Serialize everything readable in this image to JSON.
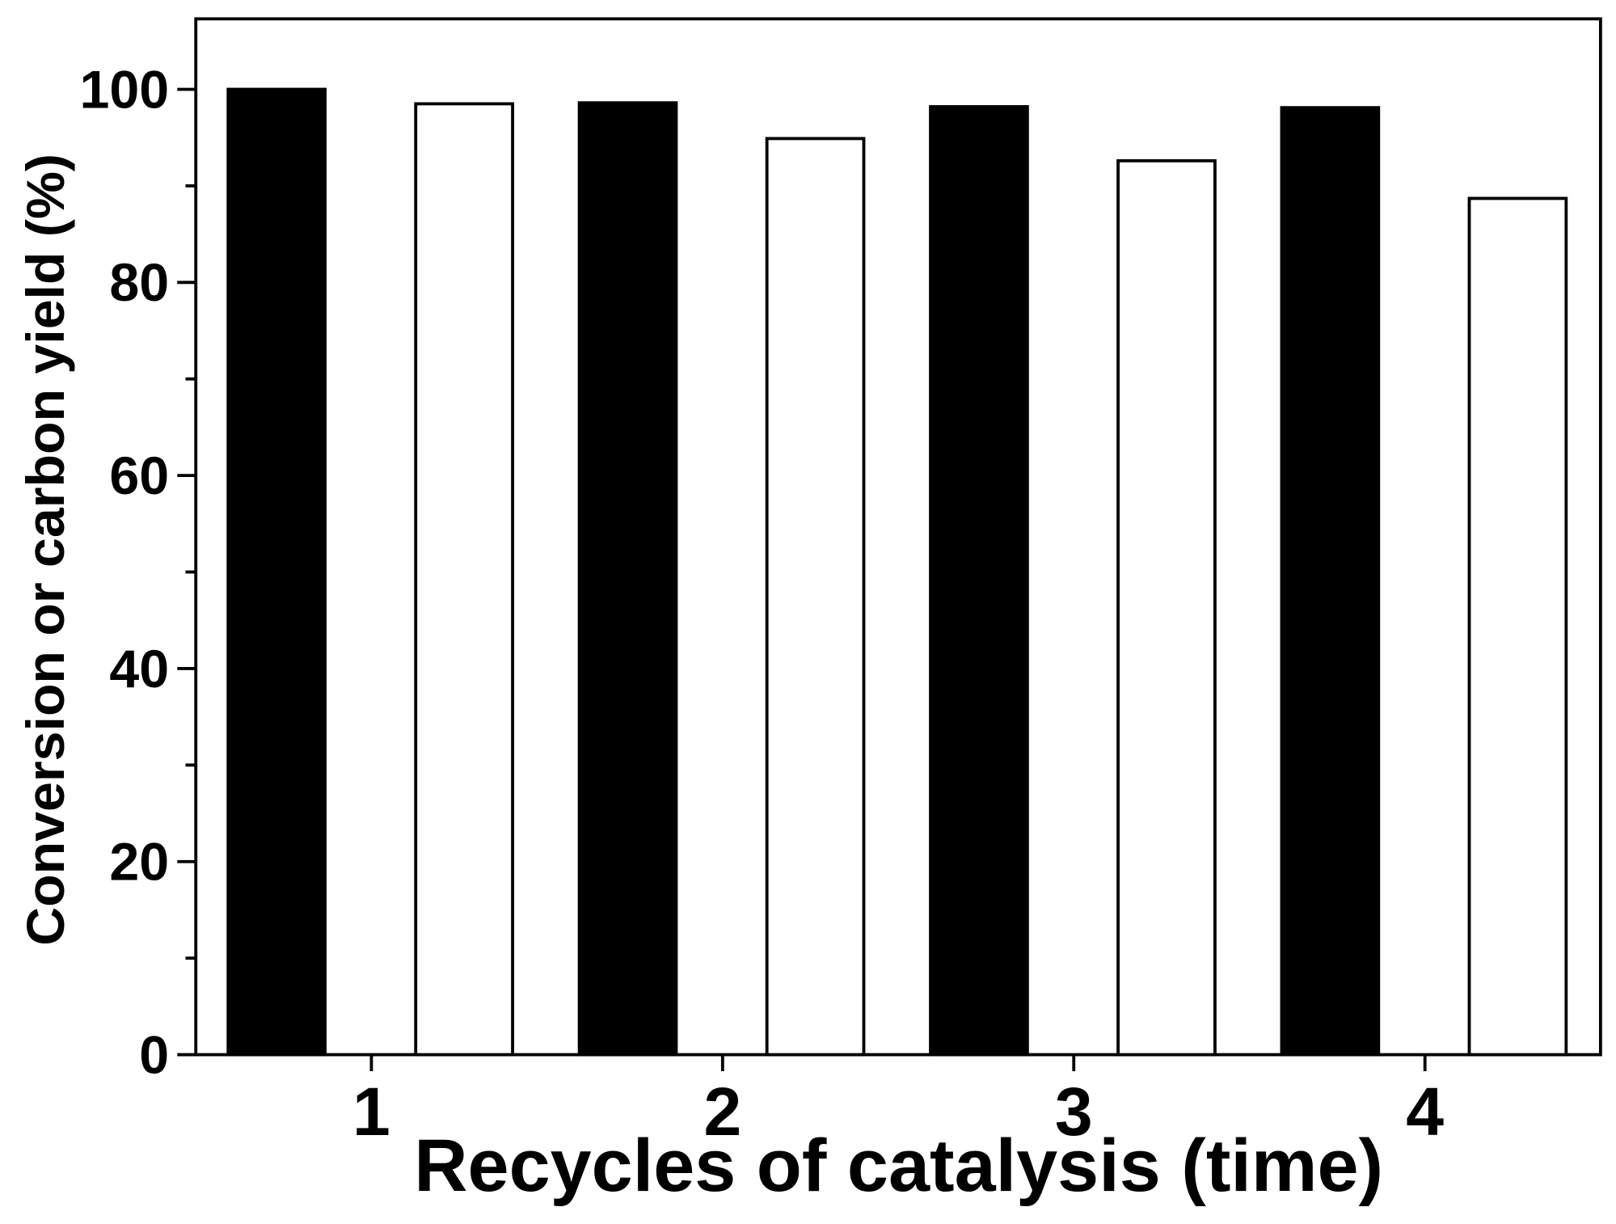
{
  "chart_data": {
    "type": "bar",
    "x_label": "Recycles of catalysis (time)",
    "y_label": "Conversion or carbon yield (%)",
    "categories": [
      "1",
      "2",
      "3",
      "4"
    ],
    "series": [
      {
        "color": "#000000",
        "values": [
          100,
          98.6,
          98.2,
          98.1
        ]
      },
      {
        "color": "#ffffff",
        "values": [
          98.5,
          94.9,
          92.6,
          88.7
        ]
      }
    ],
    "ylim": [
      0,
      107.3
    ],
    "yticks": [
      0,
      20,
      40,
      60,
      80,
      100
    ],
    "minor_yticks": [
      10,
      30,
      50,
      70,
      90
    ],
    "grid": false
  }
}
